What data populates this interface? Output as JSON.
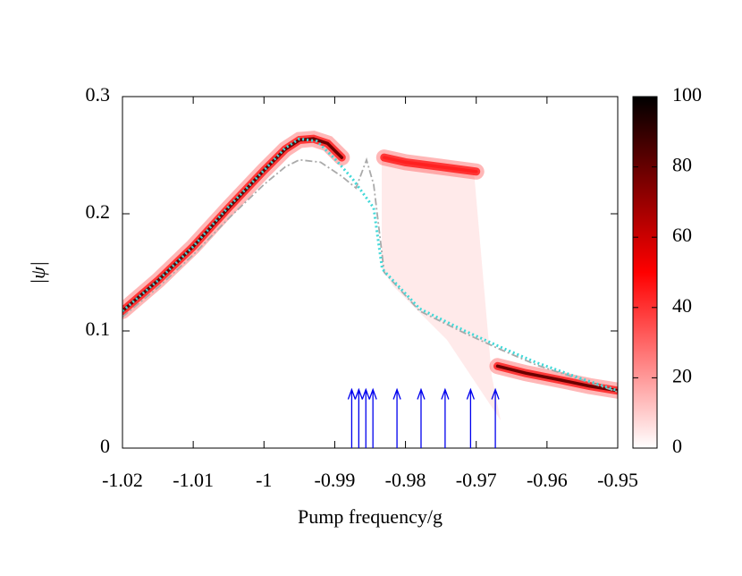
{
  "chart_data": {
    "type": "line",
    "xlabel": "Pump frequency/g",
    "ylabel": "|ψ|",
    "xlim": [
      -1.02,
      -0.95
    ],
    "xticks": [
      -1.02,
      -1.01,
      -1,
      -0.99,
      -0.98,
      -0.97,
      -0.96,
      -0.95
    ],
    "ylim": [
      0,
      0.3
    ],
    "yticks": [
      0,
      0.1,
      0.2,
      0.3
    ],
    "series": [
      {
        "color": "#6a0000",
        "style": "band",
        "x": [
          -1.02,
          -1.015,
          -1.01,
          -1.005,
          -1.0,
          -0.997,
          -0.995,
          -0.993,
          -0.991,
          -0.989,
          -0.978,
          -0.967,
          -0.963,
          -0.958,
          -0.954,
          -0.95
        ],
        "values": [
          0.117,
          0.143,
          0.172,
          0.205,
          0.237,
          0.255,
          0.263,
          0.264,
          0.26,
          0.248,
          null,
          0.07,
          0.064,
          0.058,
          0.053,
          0.049
        ]
      },
      {
        "color": "#ff2020",
        "style": "band",
        "x": [
          -0.983,
          -0.98,
          -0.975,
          -0.97
        ],
        "values": [
          0.248,
          0.244,
          0.24,
          0.236
        ]
      },
      {
        "color": "#aaaaaa",
        "style": "dashdot",
        "x": [
          -1.02,
          -1.015,
          -1.01,
          -1.005,
          -1.0,
          -0.997,
          -0.995,
          -0.992,
          -0.989,
          -0.987,
          -0.9855,
          -0.9845,
          -0.983,
          -0.978,
          -0.9716,
          -0.9665,
          -0.9615,
          -0.955,
          -0.95
        ],
        "values": [
          0.112,
          0.137,
          0.165,
          0.196,
          0.225,
          0.24,
          0.246,
          0.244,
          0.232,
          0.222,
          0.246,
          0.225,
          0.15,
          0.117,
          0.098,
          0.084,
          0.071,
          0.058,
          0.048
        ]
      },
      {
        "color": "#40d8d8",
        "style": "dotted",
        "x": [
          -1.02,
          -1.015,
          -1.01,
          -1.005,
          -1.0,
          -0.997,
          -0.995,
          -0.9925,
          -0.99,
          -0.9875,
          -0.9845,
          -0.9833,
          -0.978,
          -0.9716,
          -0.9665,
          -0.9615,
          -0.955,
          -0.95
        ],
        "values": [
          0.117,
          0.143,
          0.172,
          0.206,
          0.237,
          0.256,
          0.264,
          0.262,
          0.247,
          0.23,
          0.205,
          0.153,
          0.119,
          0.1,
          0.086,
          0.073,
          0.059,
          0.049
        ]
      }
    ],
    "arrows": {
      "color": "#0000ee",
      "top": 0.05,
      "x": [
        -0.9876,
        -0.9866,
        -0.9856,
        -0.9846,
        -0.9812,
        -0.9778,
        -0.9744,
        -0.9708,
        -0.9673
      ]
    },
    "colorbar": {
      "lim": [
        0,
        100
      ],
      "ticks": [
        0,
        20,
        40,
        60,
        80,
        100
      ],
      "colors": [
        "#ffffff",
        "#ff0000",
        "#000000"
      ]
    }
  }
}
